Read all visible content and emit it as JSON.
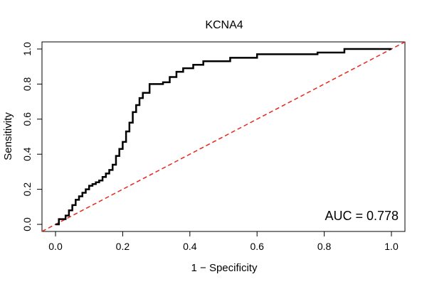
{
  "chart_data": {
    "type": "line",
    "title": "KCNA4",
    "xlabel": "1 − Specificity",
    "ylabel": "Sensitivity",
    "xlim": [
      0,
      1
    ],
    "ylim": [
      0,
      1
    ],
    "x_ticks": [
      "0.0",
      "0.2",
      "0.4",
      "0.6",
      "0.8",
      "1.0"
    ],
    "y_ticks": [
      "0.0",
      "0.2",
      "0.4",
      "0.6",
      "0.8",
      "1.0"
    ],
    "annotation": "AUC = 0.778",
    "legend": "none",
    "grid": false,
    "colors": {
      "roc": "#000000",
      "reference": "#e8261c"
    },
    "series": [
      {
        "values": [
          [
            0.0,
            0.0
          ],
          [
            0.01,
            0.01
          ],
          [
            0.01,
            0.03
          ],
          [
            0.02,
            0.03
          ],
          [
            0.03,
            0.05
          ],
          [
            0.04,
            0.08
          ],
          [
            0.05,
            0.11
          ],
          [
            0.06,
            0.14
          ],
          [
            0.07,
            0.16
          ],
          [
            0.08,
            0.18
          ],
          [
            0.09,
            0.2
          ],
          [
            0.1,
            0.22
          ],
          [
            0.11,
            0.23
          ],
          [
            0.12,
            0.24
          ],
          [
            0.13,
            0.25
          ],
          [
            0.14,
            0.27
          ],
          [
            0.15,
            0.29
          ],
          [
            0.16,
            0.31
          ],
          [
            0.17,
            0.34
          ],
          [
            0.18,
            0.39
          ],
          [
            0.19,
            0.43
          ],
          [
            0.2,
            0.47
          ],
          [
            0.21,
            0.53
          ],
          [
            0.22,
            0.58
          ],
          [
            0.23,
            0.64
          ],
          [
            0.24,
            0.68
          ],
          [
            0.25,
            0.72
          ],
          [
            0.26,
            0.75
          ],
          [
            0.28,
            0.8
          ],
          [
            0.3,
            0.8
          ],
          [
            0.32,
            0.81
          ],
          [
            0.34,
            0.84
          ],
          [
            0.36,
            0.87
          ],
          [
            0.38,
            0.89
          ],
          [
            0.41,
            0.91
          ],
          [
            0.44,
            0.93
          ],
          [
            0.47,
            0.93
          ],
          [
            0.52,
            0.95
          ],
          [
            0.6,
            0.97
          ],
          [
            0.7,
            0.97
          ],
          [
            0.78,
            0.98
          ],
          [
            0.86,
            1.0
          ],
          [
            1.0,
            1.0
          ]
        ]
      },
      {
        "values": [
          [
            0,
            0
          ],
          [
            1,
            1
          ]
        ]
      }
    ]
  }
}
